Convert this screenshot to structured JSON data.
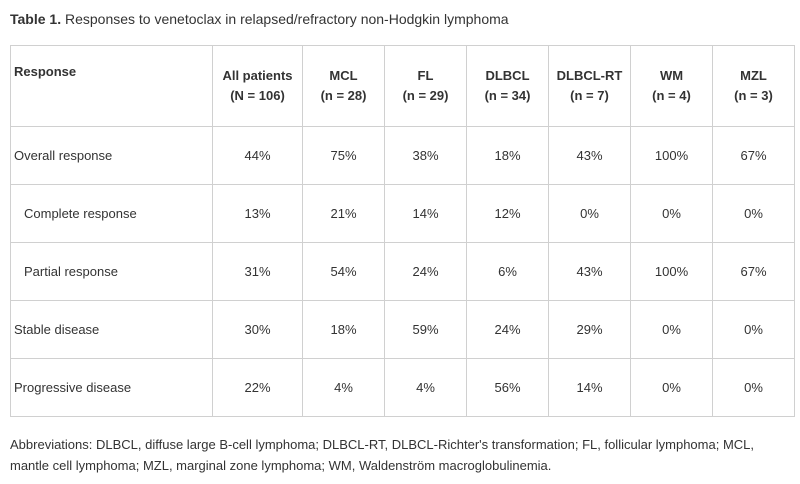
{
  "caption": {
    "label": "Table 1.",
    "title": "Responses to venetoclax in relapsed/refractory non-Hodgkin lymphoma"
  },
  "table": {
    "columns": [
      {
        "name": "Response",
        "n": ""
      },
      {
        "name": "All patients",
        "n": "(N = 106)"
      },
      {
        "name": "MCL",
        "n": "(n = 28)"
      },
      {
        "name": "FL",
        "n": "(n = 29)"
      },
      {
        "name": "DLBCL",
        "n": "(n = 34)"
      },
      {
        "name": "DLBCL-RT",
        "n": "(n = 7)"
      },
      {
        "name": "WM",
        "n": "(n = 4)"
      },
      {
        "name": "MZL",
        "n": "(n = 3)"
      }
    ],
    "rows": [
      {
        "label": "Overall response",
        "values": [
          "44%",
          "75%",
          "38%",
          "18%",
          "43%",
          "100%",
          "67%"
        ]
      },
      {
        "label": "Complete response",
        "values": [
          "13%",
          "21%",
          "14%",
          "12%",
          "0%",
          "0%",
          "0%"
        ]
      },
      {
        "label": "Partial response",
        "values": [
          "31%",
          "54%",
          "24%",
          "6%",
          "43%",
          "100%",
          "67%"
        ]
      },
      {
        "label": "Stable disease",
        "values": [
          "30%",
          "18%",
          "59%",
          "24%",
          "29%",
          "0%",
          "0%"
        ]
      },
      {
        "label": "Progressive disease",
        "values": [
          "22%",
          "4%",
          "4%",
          "56%",
          "14%",
          "0%",
          "0%"
        ]
      }
    ]
  },
  "footnote": "Abbreviations: DLBCL, diffuse large B-cell lymphoma; DLBCL-RT, DLBCL-Richter's transformation; FL, follicular lymphoma; MCL, mantle cell lymphoma; MZL, marginal zone lymphoma; WM, Waldenström macroglobulinemia."
}
